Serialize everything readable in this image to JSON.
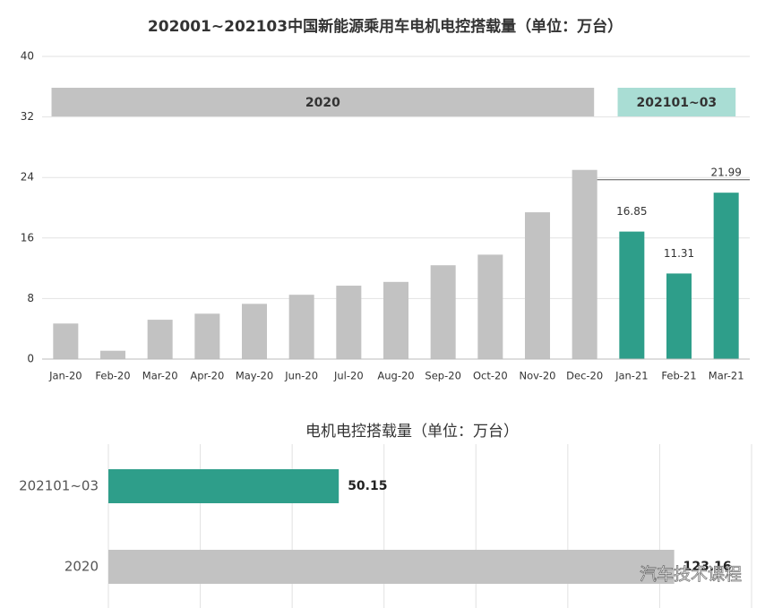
{
  "chart_data": [
    {
      "type": "bar",
      "title": "202001~202103中国新能源乘用车电机电控搭载量（单位：万台）",
      "categories": [
        "Jan-20",
        "Feb-20",
        "Mar-20",
        "Apr-20",
        "May-20",
        "Jun-20",
        "Jul-20",
        "Aug-20",
        "Sep-20",
        "Oct-20",
        "Nov-20",
        "Dec-20",
        "Jan-21",
        "Feb-21",
        "Mar-21"
      ],
      "series": [
        {
          "name": "2020",
          "color": "#c2c2c2",
          "banner_color": "#c2c2c2",
          "data_labels": false,
          "values": [
            4.7,
            1.1,
            5.2,
            6.0,
            7.3,
            8.5,
            9.7,
            10.2,
            12.4,
            13.8,
            19.4,
            25.0,
            null,
            null,
            null
          ]
        },
        {
          "name": "202101~03",
          "color": "#2e9e8a",
          "banner_color": "#a9ddd4",
          "data_labels": true,
          "values": [
            null,
            null,
            null,
            null,
            null,
            null,
            null,
            null,
            null,
            null,
            null,
            null,
            16.85,
            11.31,
            21.99
          ]
        }
      ],
      "reference_line": 23.7,
      "ylim": [
        0,
        40
      ],
      "yticks": [
        0,
        8,
        16,
        24,
        32,
        40
      ],
      "grid": true
    },
    {
      "type": "hbar",
      "title": "电机电控搭载量（单位：万台）",
      "categories": [
        "202101~03",
        "2020"
      ],
      "values": [
        50.15,
        123.16
      ],
      "colors": [
        "#2e9e8a",
        "#c2c2c2"
      ],
      "xlim": [
        0,
        140
      ],
      "xticks": [
        0,
        20,
        40,
        60,
        80,
        100,
        120,
        140
      ],
      "tick_labels": false,
      "grid": true,
      "watermark": "汽车技术课程"
    }
  ]
}
